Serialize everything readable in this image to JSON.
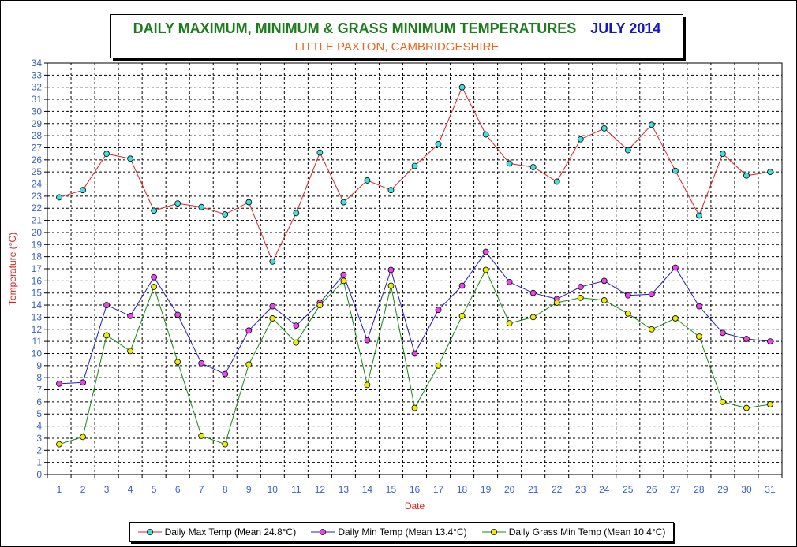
{
  "title": {
    "main": "DAILY MAXIMUM, MINIMUM & GRASS MINIMUM TEMPERATURES",
    "month": "JULY 2014",
    "subtitle": "LITTLE PAXTON, CAMBRIDGESHIRE"
  },
  "colors": {
    "max_line": "#e02020",
    "max_marker": "#40e0e0",
    "min_line": "#1c1ccc",
    "min_marker": "#ee44ee",
    "grass_line": "#138a13",
    "grass_marker": "#eeee00",
    "axis_text": "#3a5fcd",
    "axis_title": "#e02020"
  },
  "chart_data": {
    "type": "line",
    "xlabel": "Date",
    "ylabel": "Temperature (°C)",
    "ylim": [
      0,
      34
    ],
    "grid": true,
    "legend_position": "bottom",
    "x": [
      1,
      2,
      3,
      4,
      5,
      6,
      7,
      8,
      9,
      10,
      11,
      12,
      13,
      14,
      15,
      16,
      17,
      18,
      19,
      20,
      21,
      22,
      23,
      24,
      25,
      26,
      27,
      28,
      29,
      30,
      31
    ],
    "series": [
      {
        "name": "Daily Max Temp (Mean 24.8°C)",
        "values": [
          22.9,
          23.5,
          26.5,
          26.1,
          21.8,
          22.4,
          22.1,
          21.5,
          22.5,
          17.6,
          21.6,
          26.6,
          22.5,
          24.3,
          23.5,
          25.5,
          27.3,
          32.0,
          28.1,
          25.7,
          25.4,
          24.2,
          27.7,
          28.6,
          26.8,
          28.9,
          25.1,
          21.4,
          26.5,
          24.7,
          25.0
        ]
      },
      {
        "name": "Daily Min Temp (Mean 13.4°C)",
        "values": [
          7.5,
          7.6,
          14.0,
          13.1,
          16.3,
          13.2,
          9.2,
          8.3,
          11.9,
          13.9,
          12.3,
          14.2,
          16.5,
          11.1,
          16.9,
          10.0,
          13.6,
          15.6,
          18.4,
          15.9,
          15.0,
          14.5,
          15.5,
          16.0,
          14.8,
          14.9,
          17.1,
          13.9,
          11.7,
          11.2,
          11.0
        ]
      },
      {
        "name": "Daily Grass Min Temp (Mean 10.4°C)",
        "values": [
          2.5,
          3.1,
          11.5,
          10.2,
          15.5,
          9.3,
          3.2,
          2.5,
          9.1,
          12.9,
          10.9,
          14.0,
          16.0,
          7.4,
          15.6,
          5.5,
          9.0,
          13.1,
          16.9,
          12.5,
          13.0,
          14.2,
          14.6,
          14.4,
          13.3,
          12.0,
          12.9,
          11.4,
          6.0,
          5.5,
          5.8
        ]
      }
    ]
  }
}
